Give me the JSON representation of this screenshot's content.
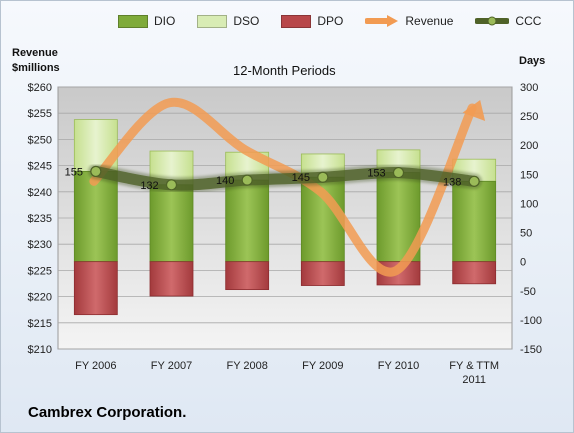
{
  "chart_data": {
    "type": "bar",
    "subtitle": "12-Month Periods",
    "company": "Cambrex Corporation.",
    "y_left_label": [
      "Revenue",
      "$millions"
    ],
    "y_right_label": "Days",
    "categories": [
      "FY 2006",
      "FY 2007",
      "FY 2008",
      "FY 2009",
      "FY 2010",
      "FY & TTM 2011"
    ],
    "y_left_ticks": [
      "$260",
      "$255",
      "$250",
      "$245",
      "$240",
      "$235",
      "$230",
      "$225",
      "$220",
      "$215",
      "$210"
    ],
    "y_left_range": [
      210,
      260
    ],
    "y_right_ticks": [
      "300",
      "250",
      "200",
      "150",
      "100",
      "50",
      "0",
      "-50",
      "-100",
      "-150"
    ],
    "y_right_range": [
      -150,
      300
    ],
    "series": [
      {
        "name": "DIO",
        "color": "#7fab3a",
        "values": [
          155,
          132,
          140,
          145,
          153,
          138
        ]
      },
      {
        "name": "DSO",
        "color": "#d8ecb4",
        "values": [
          244,
          190,
          188,
          185,
          192,
          176
        ]
      },
      {
        "name": "DPO",
        "color": "#b8474a",
        "values": [
          -91,
          -59,
          -48,
          -41,
          -40,
          -38
        ]
      },
      {
        "name": "Revenue",
        "color": "#f29b52",
        "values": [
          242,
          257,
          248,
          240,
          225,
          256
        ]
      },
      {
        "name": "CCC",
        "color": "#4f6228",
        "values": [
          155,
          132,
          140,
          145,
          153,
          138
        ]
      }
    ],
    "ccc_labels": [
      "155",
      "132",
      "140",
      "145",
      "153",
      "138"
    ],
    "legend_position": "top",
    "grid": true
  }
}
